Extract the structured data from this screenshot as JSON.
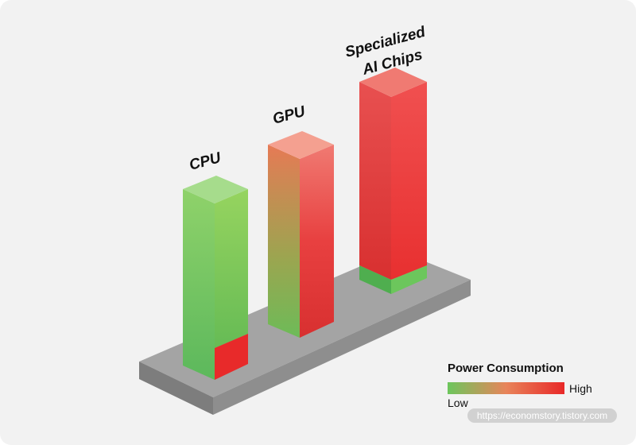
{
  "bars": [
    {
      "label": [
        "CPU"
      ]
    },
    {
      "label": [
        "GPU"
      ]
    },
    {
      "label": [
        "Specialized",
        "AI Chips"
      ]
    }
  ],
  "legend": {
    "title": "Power Consumption",
    "low": "Low",
    "high": "High"
  },
  "watermark": "https://economstory.tistory.com"
}
